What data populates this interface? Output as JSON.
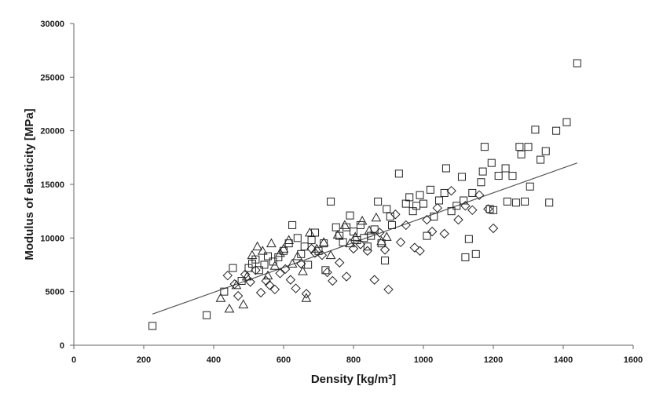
{
  "chart_data": {
    "type": "scatter",
    "title": "",
    "xlabel": "Density [kg/m³]",
    "ylabel": "Modulus of elasticity [MPa]",
    "xlim": [
      0,
      1600
    ],
    "ylim": [
      0,
      30000
    ],
    "x_ticks": [
      "0",
      "200",
      "400",
      "600",
      "800",
      "1000",
      "1200",
      "1400",
      "1600"
    ],
    "y_ticks": [
      "0",
      "5000",
      "10000",
      "15000",
      "20000",
      "25000",
      "30000"
    ],
    "grid": false,
    "legend": "none",
    "marker_color": "#222222",
    "series": [
      {
        "marker": "square",
        "points": [
          [
            225,
            1800
          ],
          [
            380,
            2800
          ],
          [
            430,
            5000
          ],
          [
            455,
            7200
          ],
          [
            480,
            6000
          ],
          [
            500,
            7200
          ],
          [
            510,
            7600
          ],
          [
            520,
            8000
          ],
          [
            530,
            7000
          ],
          [
            545,
            7500
          ],
          [
            555,
            8300
          ],
          [
            570,
            7800
          ],
          [
            585,
            8200
          ],
          [
            600,
            8800
          ],
          [
            615,
            9500
          ],
          [
            625,
            11200
          ],
          [
            640,
            10000
          ],
          [
            650,
            8500
          ],
          [
            660,
            9200
          ],
          [
            670,
            7500
          ],
          [
            680,
            9800
          ],
          [
            690,
            10500
          ],
          [
            700,
            8800
          ],
          [
            715,
            9500
          ],
          [
            720,
            7000
          ],
          [
            735,
            13400
          ],
          [
            750,
            11000
          ],
          [
            760,
            10200
          ],
          [
            770,
            9600
          ],
          [
            780,
            11000
          ],
          [
            790,
            12100
          ],
          [
            800,
            10600
          ],
          [
            810,
            9800
          ],
          [
            820,
            11200
          ],
          [
            830,
            10000
          ],
          [
            840,
            9200
          ],
          [
            850,
            10200
          ],
          [
            860,
            10800
          ],
          [
            870,
            13400
          ],
          [
            880,
            9500
          ],
          [
            890,
            7900
          ],
          [
            895,
            12700
          ],
          [
            905,
            12000
          ],
          [
            910,
            11200
          ],
          [
            930,
            16000
          ],
          [
            950,
            13200
          ],
          [
            960,
            13800
          ],
          [
            970,
            12500
          ],
          [
            980,
            13000
          ],
          [
            990,
            14000
          ],
          [
            1000,
            13200
          ],
          [
            1010,
            10200
          ],
          [
            1020,
            14500
          ],
          [
            1030,
            12000
          ],
          [
            1045,
            13500
          ],
          [
            1060,
            14200
          ],
          [
            1065,
            16500
          ],
          [
            1080,
            12500
          ],
          [
            1095,
            13000
          ],
          [
            1110,
            15700
          ],
          [
            1115,
            13500
          ],
          [
            1120,
            8200
          ],
          [
            1130,
            9900
          ],
          [
            1140,
            14200
          ],
          [
            1150,
            8500
          ],
          [
            1165,
            15200
          ],
          [
            1170,
            16200
          ],
          [
            1175,
            18500
          ],
          [
            1190,
            12700
          ],
          [
            1195,
            17000
          ],
          [
            1200,
            12600
          ],
          [
            1215,
            15800
          ],
          [
            1235,
            16500
          ],
          [
            1240,
            13400
          ],
          [
            1255,
            15800
          ],
          [
            1265,
            13300
          ],
          [
            1275,
            18500
          ],
          [
            1280,
            17800
          ],
          [
            1290,
            13400
          ],
          [
            1300,
            18500
          ],
          [
            1305,
            14800
          ],
          [
            1320,
            20100
          ],
          [
            1335,
            17300
          ],
          [
            1350,
            18100
          ],
          [
            1360,
            13300
          ],
          [
            1380,
            20000
          ],
          [
            1410,
            20800
          ],
          [
            1440,
            26300
          ]
        ]
      },
      {
        "marker": "diamond",
        "points": [
          [
            440,
            6500
          ],
          [
            460,
            5700
          ],
          [
            470,
            4600
          ],
          [
            490,
            6600
          ],
          [
            505,
            5900
          ],
          [
            520,
            7000
          ],
          [
            535,
            4900
          ],
          [
            550,
            6000
          ],
          [
            560,
            5600
          ],
          [
            575,
            5200
          ],
          [
            590,
            6700
          ],
          [
            605,
            7100
          ],
          [
            620,
            6100
          ],
          [
            635,
            5300
          ],
          [
            650,
            7600
          ],
          [
            665,
            4800
          ],
          [
            680,
            9000
          ],
          [
            690,
            8600
          ],
          [
            710,
            8400
          ],
          [
            725,
            6800
          ],
          [
            740,
            6000
          ],
          [
            760,
            7700
          ],
          [
            780,
            6400
          ],
          [
            800,
            9000
          ],
          [
            820,
            9400
          ],
          [
            840,
            8800
          ],
          [
            860,
            6100
          ],
          [
            875,
            10500
          ],
          [
            890,
            8900
          ],
          [
            900,
            5200
          ],
          [
            920,
            12200
          ],
          [
            935,
            9600
          ],
          [
            950,
            11200
          ],
          [
            975,
            9100
          ],
          [
            990,
            8800
          ],
          [
            1010,
            11700
          ],
          [
            1025,
            10600
          ],
          [
            1040,
            12800
          ],
          [
            1060,
            10400
          ],
          [
            1080,
            14400
          ],
          [
            1100,
            11700
          ],
          [
            1120,
            13000
          ],
          [
            1140,
            12600
          ],
          [
            1160,
            14000
          ],
          [
            1185,
            12700
          ],
          [
            1200,
            10900
          ]
        ]
      },
      {
        "marker": "triangle",
        "points": [
          [
            420,
            4400
          ],
          [
            445,
            3400
          ],
          [
            465,
            5600
          ],
          [
            485,
            3800
          ],
          [
            495,
            6400
          ],
          [
            510,
            8400
          ],
          [
            525,
            9200
          ],
          [
            540,
            8800
          ],
          [
            555,
            6500
          ],
          [
            565,
            9500
          ],
          [
            575,
            7400
          ],
          [
            590,
            8600
          ],
          [
            600,
            9000
          ],
          [
            615,
            9800
          ],
          [
            625,
            7600
          ],
          [
            640,
            8300
          ],
          [
            655,
            6900
          ],
          [
            665,
            4400
          ],
          [
            675,
            10500
          ],
          [
            695,
            9000
          ],
          [
            715,
            9600
          ],
          [
            735,
            8400
          ],
          [
            755,
            10300
          ],
          [
            775,
            11200
          ],
          [
            790,
            9500
          ],
          [
            805,
            10100
          ],
          [
            825,
            11600
          ],
          [
            845,
            10700
          ],
          [
            865,
            11900
          ],
          [
            880,
            9700
          ],
          [
            895,
            10100
          ]
        ]
      }
    ],
    "trendline": {
      "x": [
        225,
        1440
      ],
      "y": [
        2900,
        17000
      ]
    }
  }
}
